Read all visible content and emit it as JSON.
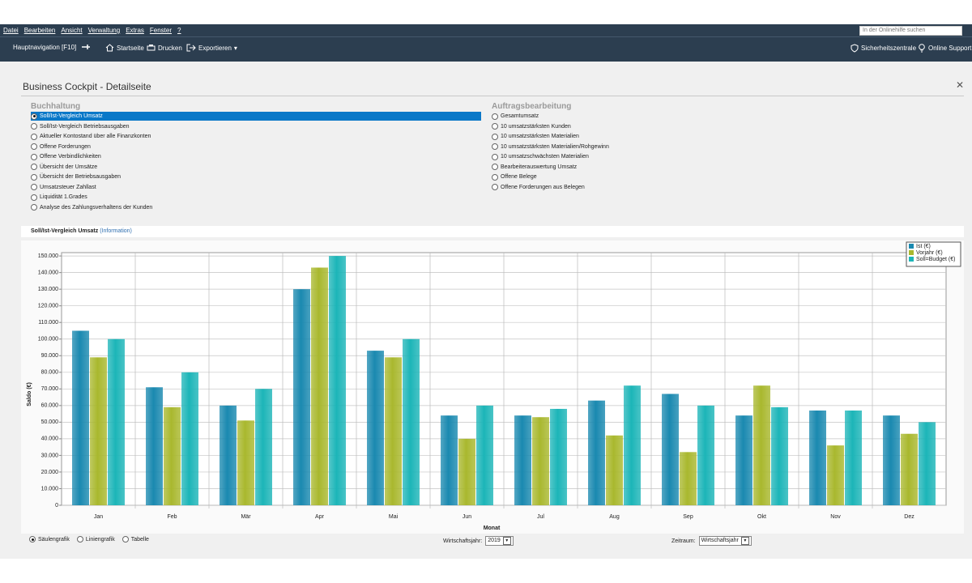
{
  "menu": [
    "Datei",
    "Bearbeiten",
    "Ansicht",
    "Verwaltung",
    "Extras",
    "Fenster",
    "?"
  ],
  "search_placeholder": "In der Onlinehilfe suchen",
  "toolbar": {
    "navigation": "Hauptnavigation [F10]",
    "home": "Startseite",
    "print": "Drucken",
    "export": "Exportieren",
    "security": "Sicherheitszentrale",
    "support": "Online Support"
  },
  "page_title": "Business Cockpit - Detailseite",
  "sections": [
    {
      "title": "Buchhaltung",
      "selected": 0,
      "items": [
        "Soll/Ist-Vergleich Umsatz",
        "Soll/Ist-Vergleich Betriebsausgaben",
        "Aktueller Kontostand über alle Finanzkonten",
        "Offene Forderungen",
        "Offene Verbindlichkeiten",
        "Übersicht der Umsätze",
        "Übersicht der Betriebsausgaben",
        "Umsatzsteuer Zahllast",
        "Liquidität 1.Grades",
        "Analyse des Zahlungsverhaltens der Kunden"
      ]
    },
    {
      "title": "Auftragsbearbeitung",
      "selected": null,
      "items": [
        "Gesamtumsatz",
        "10 umsatzstärksten Kunden",
        "10 umsatzstärksten Materialien",
        "10 umsatzstärksten Materialien/Rohgewinn",
        "10 umsatzschwächsten Materialien",
        "Bearbeiterauswertung Umsatz",
        "Offene Belege",
        "Offene Forderungen aus Belegen"
      ]
    }
  ],
  "chart_panel": {
    "title": "Soll/Ist-Vergleich Umsatz",
    "info_link": "(Information)"
  },
  "chart_data": {
    "type": "bar",
    "x_label": "Monat",
    "y_label": "Saldo (€)",
    "categories": [
      "Jan",
      "Feb",
      "Mär",
      "Apr",
      "Mai",
      "Jun",
      "Jul",
      "Aug",
      "Sep",
      "Okt",
      "Nov",
      "Dez"
    ],
    "series": [
      {
        "name": "Ist (€)",
        "color": "#1a89b0",
        "values": [
          105000,
          71000,
          60000,
          130000,
          93000,
          54000,
          54000,
          63000,
          67000,
          54000,
          57000,
          54000
        ]
      },
      {
        "name": "Vorjahr (€)",
        "color": "#a9b82e",
        "values": [
          89000,
          59000,
          51000,
          143000,
          89000,
          40000,
          53000,
          42000,
          32000,
          72000,
          36000,
          43000
        ]
      },
      {
        "name": "Soll=Budget (€)",
        "color": "#1cb5b8",
        "values": [
          100000,
          80000,
          70000,
          150000,
          100000,
          60000,
          58000,
          72000,
          60000,
          59000,
          57000,
          50000
        ]
      }
    ],
    "ylim": [
      0,
      152000
    ],
    "yticks": [
      0,
      {
        "value": 10000,
        "label": "10.000"
      },
      {
        "value": 20000,
        "label": "20.000"
      },
      {
        "value": 30000,
        "label": "30.000"
      },
      {
        "value": 40000,
        "label": "40.000"
      },
      {
        "value": 50000,
        "label": "50.000"
      },
      {
        "value": 60000,
        "label": "60.000"
      },
      {
        "value": 70000,
        "label": "70.000"
      },
      {
        "value": 80000,
        "label": "80.000"
      },
      {
        "value": 90000,
        "label": "90.000"
      },
      {
        "value": 100000,
        "label": "100.000"
      },
      {
        "value": 110000,
        "label": "110.000"
      },
      {
        "value": 120000,
        "label": "120.000"
      },
      {
        "value": 130000,
        "label": "130.000"
      },
      {
        "value": 140000,
        "label": "140.000"
      },
      {
        "value": 150000,
        "label": "150.000"
      }
    ],
    "grid": true,
    "legend": "top-right"
  },
  "controls": {
    "chart_types": [
      "Säulengrafik",
      "Liniengrafik",
      "Tabelle"
    ],
    "selected_chart_type": 0,
    "fiscal_year_label": "Wirtschaftsjahr:",
    "fiscal_year": "2019",
    "period_label": "Zeitraum:",
    "period": "Wirtschaftsjahr"
  }
}
